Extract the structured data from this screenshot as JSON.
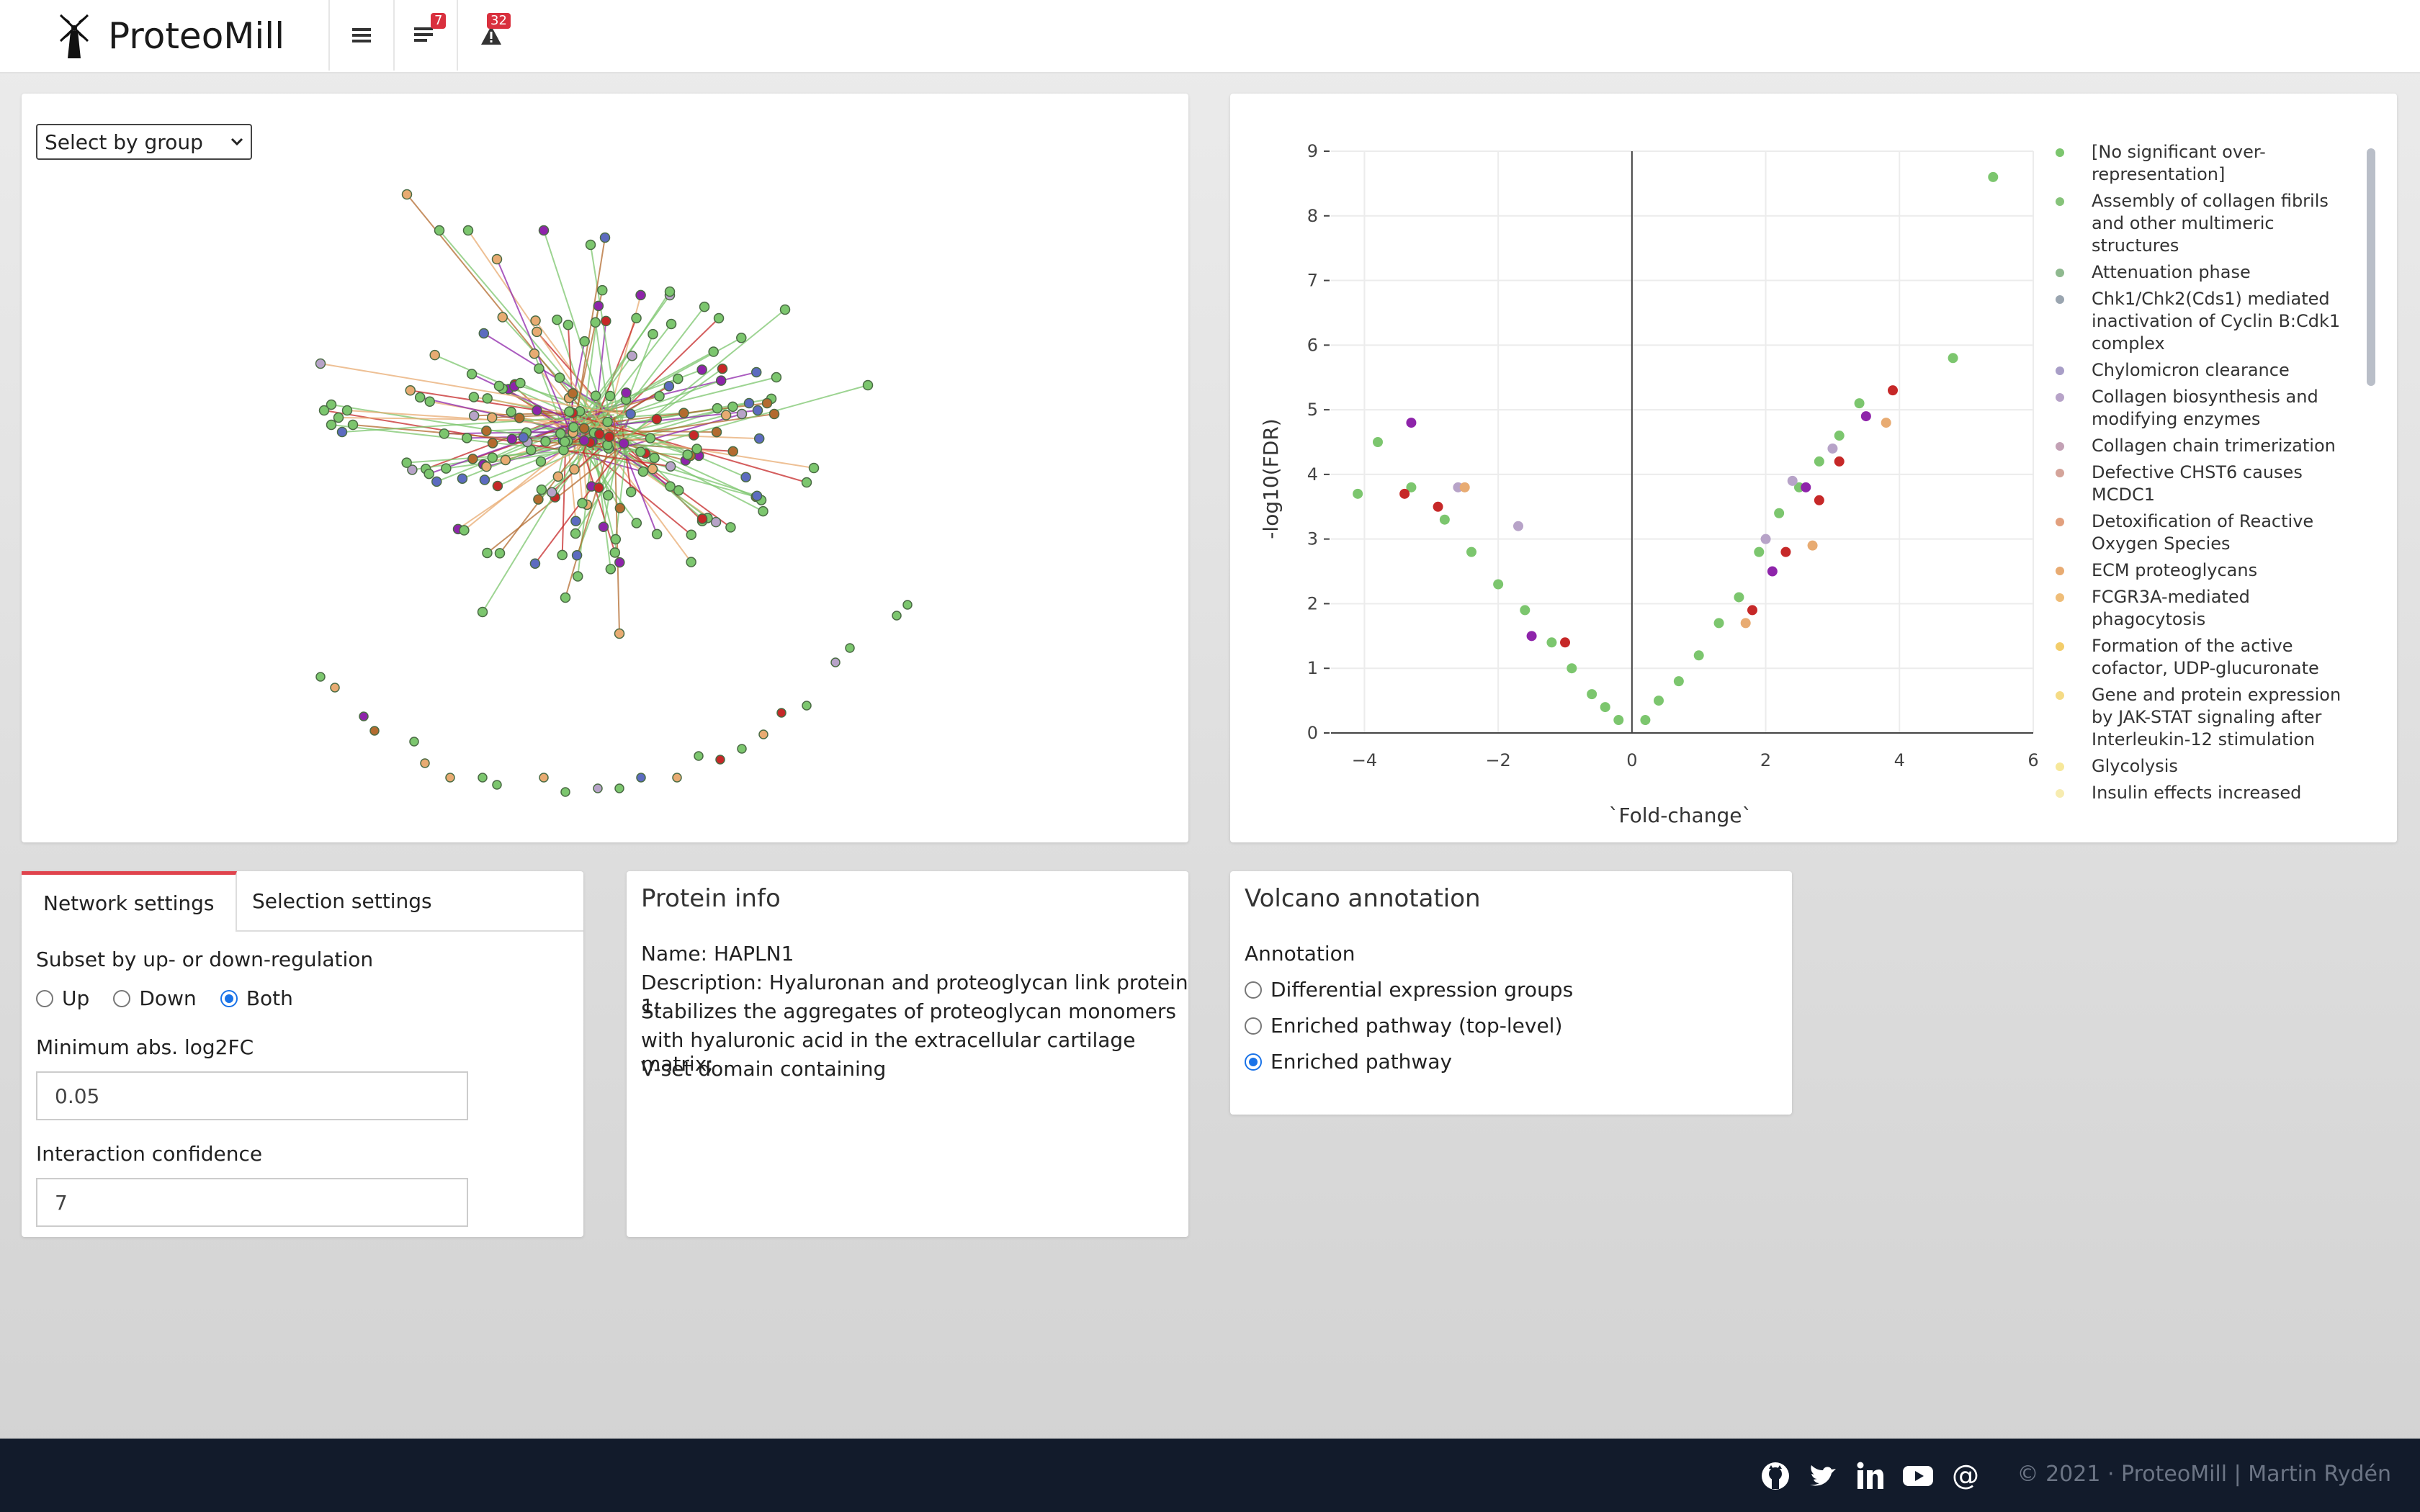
{
  "app": {
    "title": "ProteoMill"
  },
  "header": {
    "menu_icon": "hamburger-icon",
    "tasks_badge": "7",
    "alerts_badge": "32"
  },
  "network": {
    "select_label": "Select by group"
  },
  "volcano_chart": {
    "xlabel": "`Fold-change`",
    "ylabel": "-log10(FDR)",
    "x_ticks": [
      "−4",
      "−2",
      "0",
      "2",
      "4",
      "6"
    ],
    "y_ticks": [
      "0",
      "1",
      "2",
      "3",
      "4",
      "5",
      "6",
      "7",
      "8",
      "9"
    ],
    "legend": [
      "[No significant over-representation]",
      "Assembly of collagen fibrils and other multimeric structures",
      "Attenuation phase",
      "Chk1/Chk2(Cds1) mediated inactivation of Cyclin B:Cdk1 complex",
      "Chylomicron clearance",
      "Collagen biosynthesis and modifying enzymes",
      "Collagen chain trimerization",
      "Defective CHST6 causes MCDC1",
      "Detoxification of Reactive Oxygen Species",
      "ECM proteoglycans",
      "FCGR3A-mediated phagocytosis",
      "Formation of the active cofactor, UDP-glucuronate",
      "Gene and protein expression by JAK-STAT signaling after Interleukin-12 stimulation",
      "Glycolysis",
      "Insulin effects increased"
    ],
    "legend_colors": [
      "#7cc66e",
      "#86c37a",
      "#8fb98f",
      "#9aa5b0",
      "#a89ec7",
      "#b7a3c8",
      "#c3a1b5",
      "#d4a49a",
      "#e2a07e",
      "#e8ab72",
      "#efbd78",
      "#f3cd6a",
      "#f5db85",
      "#f7e89a",
      "#f7ecb0"
    ]
  },
  "chart_data": {
    "type": "scatter",
    "xlabel": "`Fold-change`",
    "ylabel": "-log10(FDR)",
    "xlim": [
      -4.5,
      6
    ],
    "ylim": [
      0,
      9
    ],
    "grid": true,
    "legend_position": "right",
    "series": [
      {
        "name": "[No significant over-representation]",
        "x": [
          -4.1,
          -3.8,
          -3.3,
          -2.8,
          -2.4,
          -2.0,
          -1.6,
          -1.2,
          -0.9,
          -0.6,
          -0.4,
          -0.2,
          0.2,
          0.4,
          0.7,
          1.0,
          1.3,
          1.6,
          1.9,
          2.2,
          2.5,
          2.8,
          3.1,
          3.4,
          4.8,
          5.4
        ],
        "y": [
          3.7,
          4.5,
          3.8,
          3.3,
          2.8,
          2.3,
          1.9,
          1.4,
          1.0,
          0.6,
          0.4,
          0.2,
          0.2,
          0.5,
          0.8,
          1.2,
          1.7,
          2.1,
          2.8,
          3.4,
          3.8,
          4.2,
          4.6,
          5.1,
          5.8,
          8.6
        ]
      },
      {
        "name": "Assembly of collagen fibrils and other multimeric structures",
        "x": [
          -3.4,
          -2.9,
          -1.0,
          1.8,
          2.3,
          2.8,
          3.1,
          3.9
        ],
        "y": [
          3.7,
          3.5,
          1.4,
          1.9,
          2.8,
          3.6,
          4.2,
          5.3
        ]
      },
      {
        "name": "Chylomicron clearance",
        "x": [
          -3.3,
          -1.5,
          2.1,
          2.6,
          3.5
        ],
        "y": [
          4.8,
          1.5,
          2.5,
          3.8,
          4.9
        ]
      },
      {
        "name": "Collagen biosynthesis and modifying enzymes",
        "x": [
          -2.6,
          -1.7,
          2.0,
          2.4,
          3.0
        ],
        "y": [
          3.8,
          3.2,
          3.0,
          3.9,
          4.4
        ]
      },
      {
        "name": "ECM proteoglycans",
        "x": [
          -2.5,
          1.7,
          2.7,
          3.8
        ],
        "y": [
          3.8,
          1.7,
          2.9,
          4.8
        ]
      }
    ]
  },
  "tabs": {
    "network_settings": "Network settings",
    "selection_settings": "Selection settings"
  },
  "settings": {
    "subset_label": "Subset by up- or down-regulation",
    "opt_up": "Up",
    "opt_down": "Down",
    "opt_both": "Both",
    "selected": "Both",
    "min_log2fc_label": "Minimum abs. log2FC",
    "min_log2fc_value": "0.05",
    "confidence_label": "Interaction confidence",
    "confidence_value": "7"
  },
  "protein_info": {
    "title": "Protein info",
    "name_line": "Name: HAPLN1",
    "desc_1": "Description: Hyaluronan and proteoglycan link protein 1;",
    "desc_2": "Stabilizes the aggregates of proteoglycan monomers",
    "desc_3": "with hyaluronic acid in the extracellular cartilage matrix;",
    "desc_4": "V-set domain containing"
  },
  "volcano_annotation": {
    "title": "Volcano annotation",
    "annotation_label": "Annotation",
    "opt_1": "Differential expression groups",
    "opt_2": "Enriched pathway (top-level)",
    "opt_3": "Enriched pathway",
    "selected": "Enriched pathway"
  },
  "footer": {
    "icons": [
      "github-icon",
      "twitter-icon",
      "linkedin-icon",
      "youtube-icon",
      "at-icon"
    ],
    "copyright": "© 2021 · ProteoMill | Martin Rydén"
  }
}
